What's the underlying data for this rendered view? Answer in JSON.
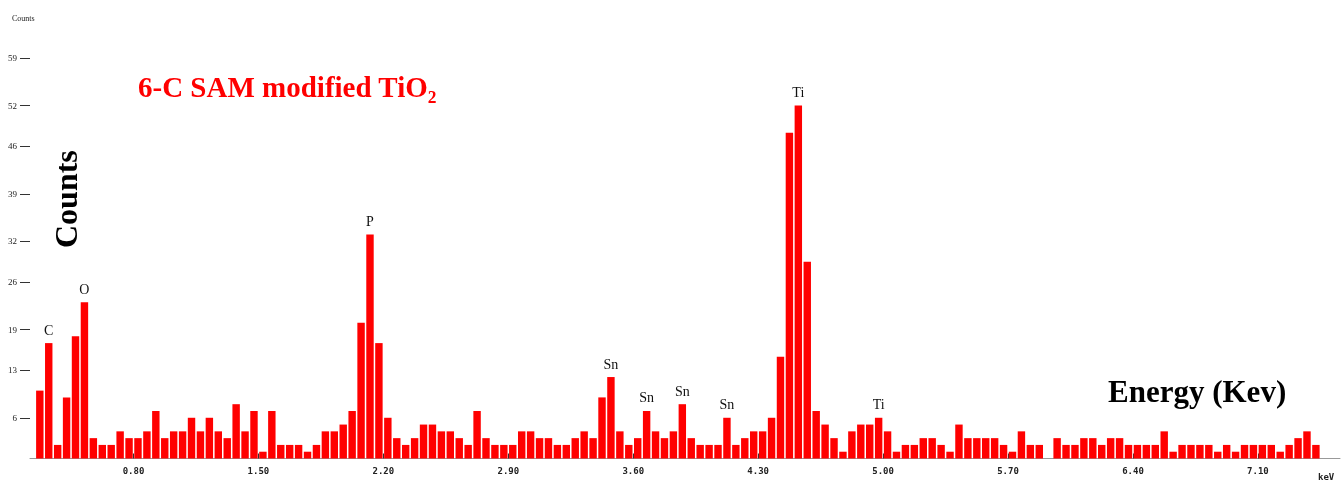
{
  "chart_data": {
    "type": "bar",
    "title": "6-C SAM modified TiO₂",
    "xlabel": "Energy (Kev)",
    "ylabel": "Counts",
    "color": "#ff0000",
    "x": [
      0.275,
      0.325,
      0.375,
      0.425,
      0.475,
      0.525,
      0.575,
      0.625,
      0.675,
      0.725,
      0.775,
      0.825,
      0.875,
      0.925,
      0.975,
      1.025,
      1.075,
      1.125,
      1.175,
      1.225,
      1.275,
      1.325,
      1.375,
      1.425,
      1.475,
      1.525,
      1.575,
      1.625,
      1.675,
      1.725,
      1.775,
      1.825,
      1.875,
      1.925,
      1.975,
      2.025,
      2.075,
      2.125,
      2.175,
      2.225,
      2.275,
      2.325,
      2.375,
      2.425,
      2.475,
      2.525,
      2.575,
      2.625,
      2.675,
      2.725,
      2.775,
      2.825,
      2.875,
      2.925,
      2.975,
      3.025,
      3.075,
      3.125,
      3.175,
      3.225,
      3.275,
      3.325,
      3.375,
      3.425,
      3.475,
      3.525,
      3.575,
      3.625,
      3.675,
      3.725,
      3.775,
      3.825,
      3.875,
      3.925,
      3.975,
      4.025,
      4.075,
      4.125,
      4.175,
      4.225,
      4.275,
      4.325,
      4.375,
      4.425,
      4.475,
      4.525,
      4.575,
      4.625,
      4.675,
      4.725,
      4.775,
      4.825,
      4.875,
      4.925,
      4.975,
      5.025,
      5.075,
      5.125,
      5.175,
      5.225,
      5.275,
      5.325,
      5.375,
      5.425,
      5.475,
      5.525,
      5.575,
      5.625,
      5.675,
      5.725,
      5.775,
      5.825,
      5.875,
      5.925,
      5.975,
      6.025,
      6.075,
      6.125,
      6.175,
      6.225,
      6.275,
      6.325,
      6.375,
      6.425,
      6.475,
      6.525,
      6.575,
      6.625,
      6.675,
      6.725,
      6.775,
      6.825,
      6.875,
      6.925,
      6.975,
      7.025,
      7.075,
      7.125,
      7.175,
      7.225,
      7.275,
      7.325,
      7.375,
      7.425
    ],
    "values": [
      10,
      17,
      2,
      9,
      18,
      23,
      3,
      2,
      2,
      4,
      3,
      3,
      4,
      7,
      3,
      4,
      4,
      6,
      4,
      6,
      4,
      3,
      8,
      4,
      7,
      1,
      7,
      2,
      2,
      2,
      1,
      2,
      4,
      4,
      5,
      7,
      20,
      33,
      17,
      6,
      3,
      2,
      3,
      5,
      5,
      4,
      4,
      3,
      2,
      7,
      3,
      2,
      2,
      2,
      4,
      4,
      3,
      3,
      2,
      2,
      3,
      4,
      3,
      9,
      12,
      4,
      2,
      3,
      7,
      4,
      3,
      4,
      8,
      3,
      2,
      2,
      2,
      6,
      2,
      3,
      4,
      4,
      6,
      15,
      48,
      52,
      29,
      7,
      5,
      3,
      1,
      4,
      5,
      5,
      6,
      4,
      1,
      2,
      2,
      3,
      3,
      2,
      1,
      5,
      3,
      3,
      3,
      3,
      2,
      1,
      4,
      2,
      2,
      0,
      3,
      2,
      2,
      3,
      3,
      2,
      3,
      3,
      2,
      2,
      2,
      2,
      4,
      1,
      2,
      2,
      2,
      2,
      1,
      2,
      1,
      2,
      2,
      2,
      2,
      1,
      2,
      3,
      4,
      2
    ],
    "xlim": [
      0.22,
      7.56
    ],
    "ylim": [
      0,
      59
    ],
    "xticks": [
      {
        "value": 0.8,
        "label": "0.80"
      },
      {
        "value": 1.5,
        "label": "1.50"
      },
      {
        "value": 2.2,
        "label": "2.20"
      },
      {
        "value": 2.9,
        "label": "2.90"
      },
      {
        "value": 3.6,
        "label": "3.60"
      },
      {
        "value": 4.3,
        "label": "4.30"
      },
      {
        "value": 5.0,
        "label": "5.00"
      },
      {
        "value": 5.7,
        "label": "5.70"
      },
      {
        "value": 6.4,
        "label": "6.40"
      },
      {
        "value": 7.1,
        "label": "7.10"
      }
    ],
    "yticks": [
      6,
      13,
      19,
      26,
      32,
      39,
      46,
      52,
      59
    ],
    "annotations": [
      "Counts",
      "keV",
      {
        "text": "C",
        "x": 0.325,
        "y": 17
      },
      {
        "text": "O",
        "x": 0.525,
        "y": 23
      },
      {
        "text": "P",
        "x": 2.125,
        "y": 33
      },
      {
        "text": "Sn",
        "x": 3.475,
        "y": 12
      },
      {
        "text": "Sn",
        "x": 3.675,
        "y": 7
      },
      {
        "text": "Sn",
        "x": 3.875,
        "y": 8
      },
      {
        "text": "Sn",
        "x": 4.125,
        "y": 6
      },
      {
        "text": "Ti",
        "x": 4.525,
        "y": 52
      },
      {
        "text": "Ti",
        "x": 4.975,
        "y": 6
      }
    ]
  }
}
